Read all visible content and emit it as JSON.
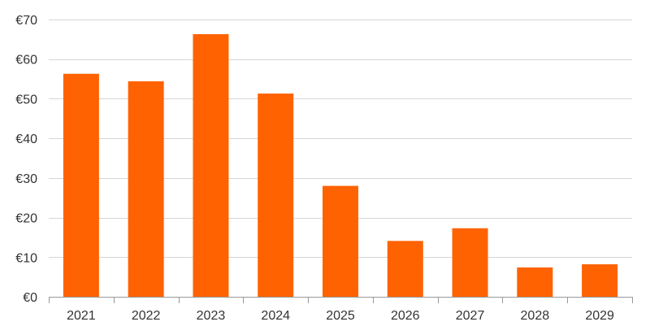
{
  "chart_data": {
    "type": "bar",
    "title": "",
    "xlabel": "",
    "ylabel": "",
    "categories": [
      "2021",
      "2022",
      "2023",
      "2024",
      "2025",
      "2026",
      "2027",
      "2028",
      "2029"
    ],
    "values": [
      56.3,
      54.4,
      66.3,
      51.3,
      28.0,
      14.1,
      17.3,
      7.4,
      8.2
    ],
    "ylim": [
      0,
      70
    ],
    "yticks": [
      0,
      10,
      20,
      30,
      40,
      50,
      60,
      70
    ],
    "ytick_labels": [
      "€0",
      "€10",
      "€20",
      "€30",
      "€40",
      "€50",
      "€60",
      "€70"
    ],
    "grid": true,
    "legend": "none",
    "colors": {
      "bar": "#FF6200",
      "grid": "#d6d6d6",
      "axis": "#9a9a9a",
      "text": "#333333"
    }
  }
}
